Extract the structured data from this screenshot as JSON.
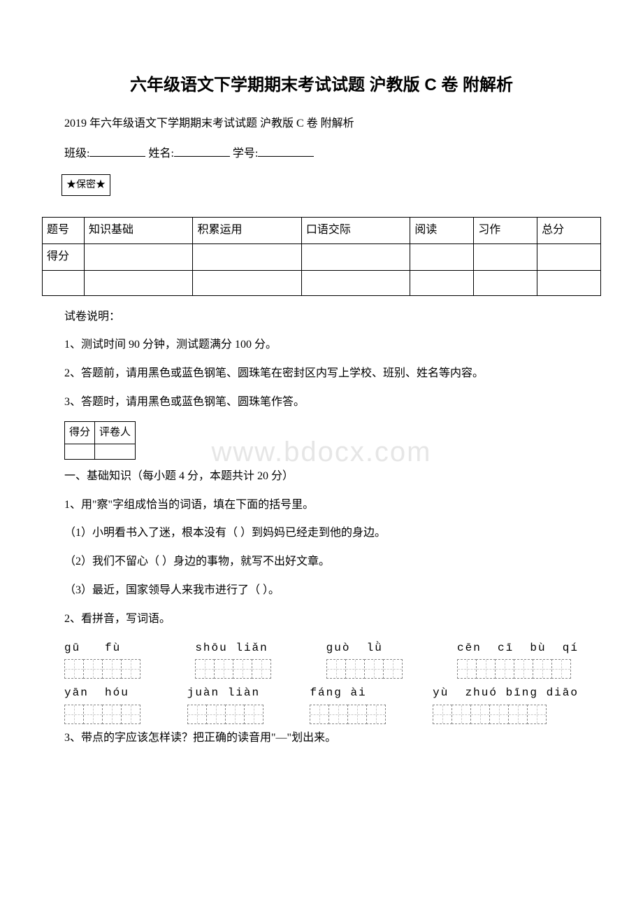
{
  "doc": {
    "title": "六年级语文下学期期末考试试题 沪教版 C 卷 附解析",
    "subtitle": "2019 年六年级语文下学期期末考试试题 沪教版 C 卷 附解析",
    "form": {
      "class_label": "班级:",
      "name_label": "姓名:",
      "id_label": "学号:"
    },
    "secret": "★保密★",
    "score_table": {
      "headers": [
        "题号",
        "知识基础",
        "积累运用",
        "口语交际",
        "阅读",
        "习作",
        "总分"
      ],
      "row2_label": "得分"
    },
    "explain_heading": "试卷说明：",
    "explain": [
      "1、测试时间 90 分钟，测试题满分 100 分。",
      "2、答题前，请用黑色或蓝色钢笔、圆珠笔在密封区内写上学校、班别、姓名等内容。",
      "3、答题时，请用黑色或蓝色钢笔、圆珠笔作答。"
    ],
    "rubric": {
      "score": "得分",
      "grader": "评卷人"
    },
    "section1": {
      "heading": "一、基础知识（每小题 4 分，本题共计 20 分）",
      "q1": "1、用\"察\"字组成恰当的词语，填在下面的括号里。",
      "q1_items": [
        "（1）小明看书入了迷，根本没有（ ）到妈妈已经走到他的身边。",
        "（2）我们不留心（ ）身边的事物，就写不出好文章。",
        "（3）最近，国家领导人来我市进行了（ ）。"
      ],
      "q2": "2、看拼音，写词语。",
      "pinyin_rows": [
        [
          {
            "label": "gū   fù",
            "cells": 4
          },
          {
            "label": "shōu liǎn",
            "cells": 4
          },
          {
            "label": "guò  lǜ",
            "cells": 4
          },
          {
            "label": "cēn  cī  bù  qí",
            "cells": 6
          }
        ],
        [
          {
            "label": "yān  hóu",
            "cells": 4
          },
          {
            "label": "juàn liàn",
            "cells": 4
          },
          {
            "label": "fáng ài",
            "cells": 4
          },
          {
            "label": "yù  zhuó bīng diāo",
            "cells": 6
          }
        ]
      ],
      "q3": "3、带点的字应该怎样读？把正确的读音用\"—\"划出来。"
    },
    "watermark": "www.bdocx.com"
  }
}
